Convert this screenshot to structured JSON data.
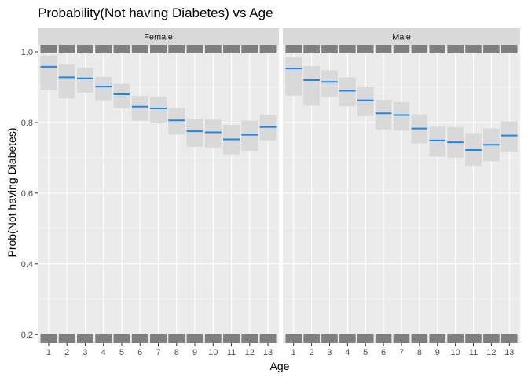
{
  "chart_data": {
    "type": "crossbar",
    "title": "Probability(Not having Diabetes) vs Age",
    "xlabel": "Age",
    "ylabel": "Prob(Not having Diabetes)",
    "categories": [
      "1",
      "2",
      "3",
      "4",
      "5",
      "6",
      "7",
      "8",
      "9",
      "10",
      "11",
      "12",
      "13"
    ],
    "ylim": [
      0.175,
      1.02
    ],
    "yticks": [
      "0.2",
      "0.4",
      "0.6",
      "0.8",
      "1.0"
    ],
    "ytick_values": [
      0.2,
      0.4,
      0.6,
      0.8,
      1.0
    ],
    "grid": true,
    "colors": {
      "mean_line": "#1e88e5",
      "band": "#d9d9d9",
      "panel": "#ebebeb",
      "strip": "#d9d9d9",
      "rug": "#7f7f7f"
    },
    "panels": [
      {
        "label": "Female",
        "mean": [
          0.958,
          0.928,
          0.925,
          0.902,
          0.88,
          0.845,
          0.84,
          0.806,
          0.775,
          0.772,
          0.752,
          0.765,
          0.787
        ],
        "lower": [
          0.892,
          0.868,
          0.885,
          0.863,
          0.84,
          0.805,
          0.8,
          0.766,
          0.731,
          0.729,
          0.709,
          0.72,
          0.749
        ],
        "upper": [
          0.99,
          0.965,
          0.955,
          0.929,
          0.91,
          0.875,
          0.873,
          0.841,
          0.81,
          0.808,
          0.793,
          0.805,
          0.822
        ]
      },
      {
        "label": "Male",
        "mean": [
          0.953,
          0.92,
          0.915,
          0.89,
          0.863,
          0.826,
          0.821,
          0.783,
          0.749,
          0.744,
          0.722,
          0.737,
          0.763
        ],
        "lower": [
          0.876,
          0.848,
          0.872,
          0.846,
          0.818,
          0.78,
          0.777,
          0.741,
          0.703,
          0.7,
          0.677,
          0.69,
          0.718
        ],
        "upper": [
          0.986,
          0.96,
          0.948,
          0.928,
          0.9,
          0.864,
          0.858,
          0.823,
          0.788,
          0.787,
          0.77,
          0.783,
          0.803
        ]
      }
    ]
  }
}
